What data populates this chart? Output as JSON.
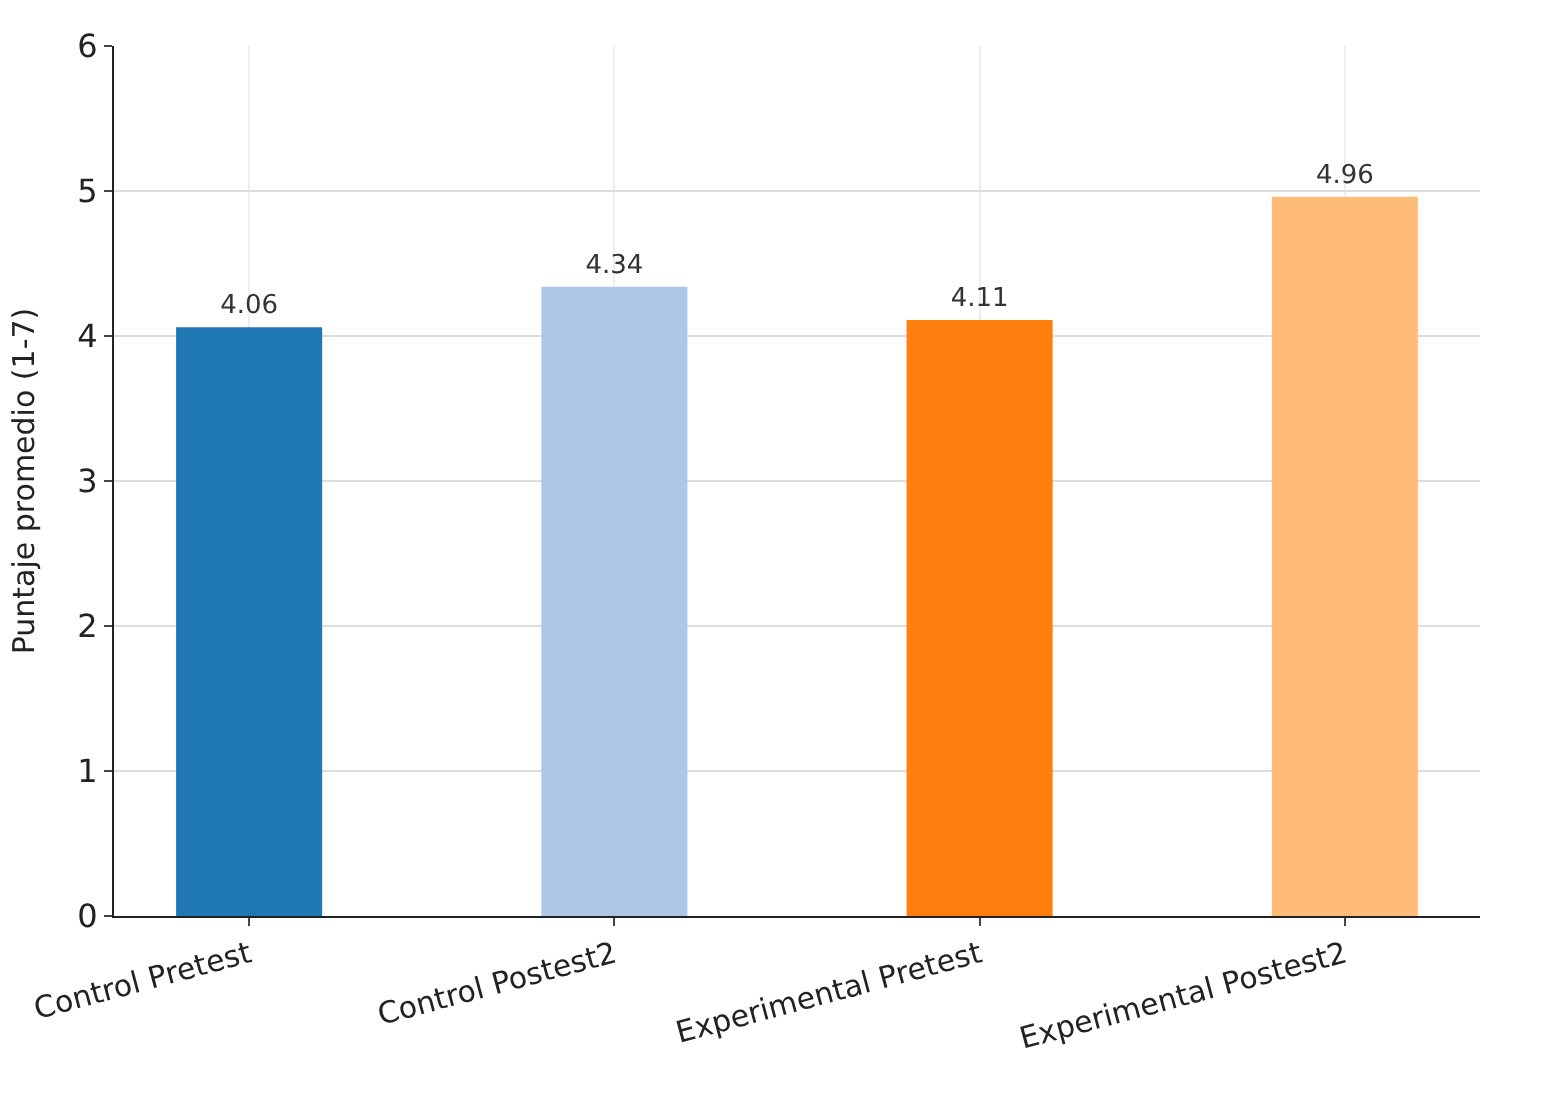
{
  "chart_data": {
    "type": "bar",
    "ylabel": "Puntaje promedio (1-7)",
    "categories": [
      "Control Pretest",
      "Control Postest2",
      "Experimental Pretest",
      "Experimental Postest2"
    ],
    "values": [
      4.06,
      4.34,
      4.11,
      4.96
    ],
    "colors": [
      "#1f77b4",
      "#aec7e8",
      "#ff7f0e",
      "#ffbb78"
    ],
    "ylim": [
      0,
      6
    ],
    "yticks": [
      0,
      1,
      2,
      3,
      4,
      5,
      6
    ],
    "grid": true,
    "data_labels": true
  }
}
